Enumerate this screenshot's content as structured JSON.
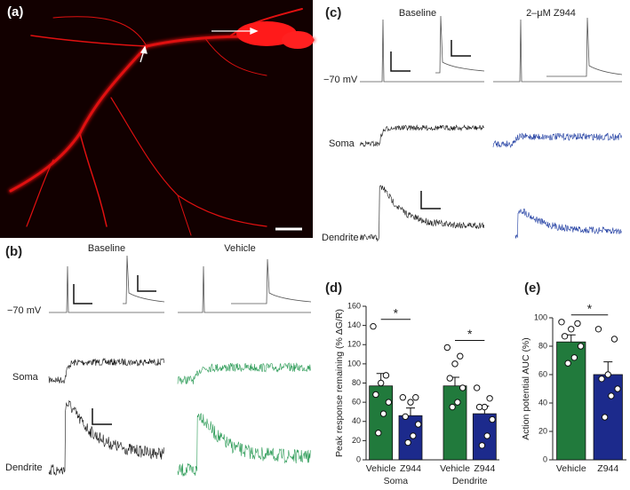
{
  "panel_labels": [
    "(a)",
    "(b)",
    "(c)",
    "(d)",
    "(e)"
  ],
  "panel_b": {
    "conditions": [
      "Baseline",
      "Vehicle"
    ],
    "voltage": "−70 mV",
    "rows": [
      "Soma",
      "Dendrite"
    ]
  },
  "panel_c": {
    "conditions": [
      "Baseline",
      "2–μM Z944"
    ],
    "voltage": "−70 mV",
    "rows": [
      "Soma",
      "Dendrite"
    ]
  },
  "chart_data": [
    {
      "type": "bar",
      "ylabel": "Peak response remaining (% ΔG/R)",
      "categories": [
        "Vehicle",
        "Z944",
        "Vehicle",
        "Z944"
      ],
      "groups": [
        "Soma",
        "Dendrite"
      ],
      "values": [
        77,
        46,
        77,
        48
      ],
      "errors": [
        13,
        8,
        9,
        8
      ],
      "colors": [
        "#217a3c",
        "#1c2a8c",
        "#217a3c",
        "#1c2a8c"
      ],
      "points": [
        [
          139,
          88,
          80,
          68,
          60,
          48,
          28
        ],
        [
          65,
          65,
          60,
          45,
          37,
          25,
          18
        ],
        [
          117,
          108,
          100,
          85,
          75,
          60,
          55
        ],
        [
          75,
          64,
          55,
          55,
          42,
          25,
          15
        ]
      ],
      "annotations": [
        "*",
        "*"
      ],
      "ylim": [
        0,
        160
      ],
      "yticks": [
        0,
        20,
        40,
        60,
        80,
        100,
        120,
        140,
        160
      ]
    },
    {
      "type": "bar",
      "ylabel": "Action potential AUC (%)",
      "categories": [
        "Vehicle",
        "Z944"
      ],
      "values": [
        83,
        60
      ],
      "errors": [
        5,
        9
      ],
      "colors": [
        "#217a3c",
        "#1c2a8c"
      ],
      "points": [
        [
          97,
          96,
          92,
          87,
          80,
          72,
          68
        ],
        [
          92,
          85,
          60,
          57,
          50,
          45,
          30
        ]
      ],
      "annotations": [
        "*"
      ],
      "ylim": [
        0,
        100
      ],
      "yticks": [
        0,
        20,
        40,
        60,
        80,
        100
      ]
    }
  ]
}
